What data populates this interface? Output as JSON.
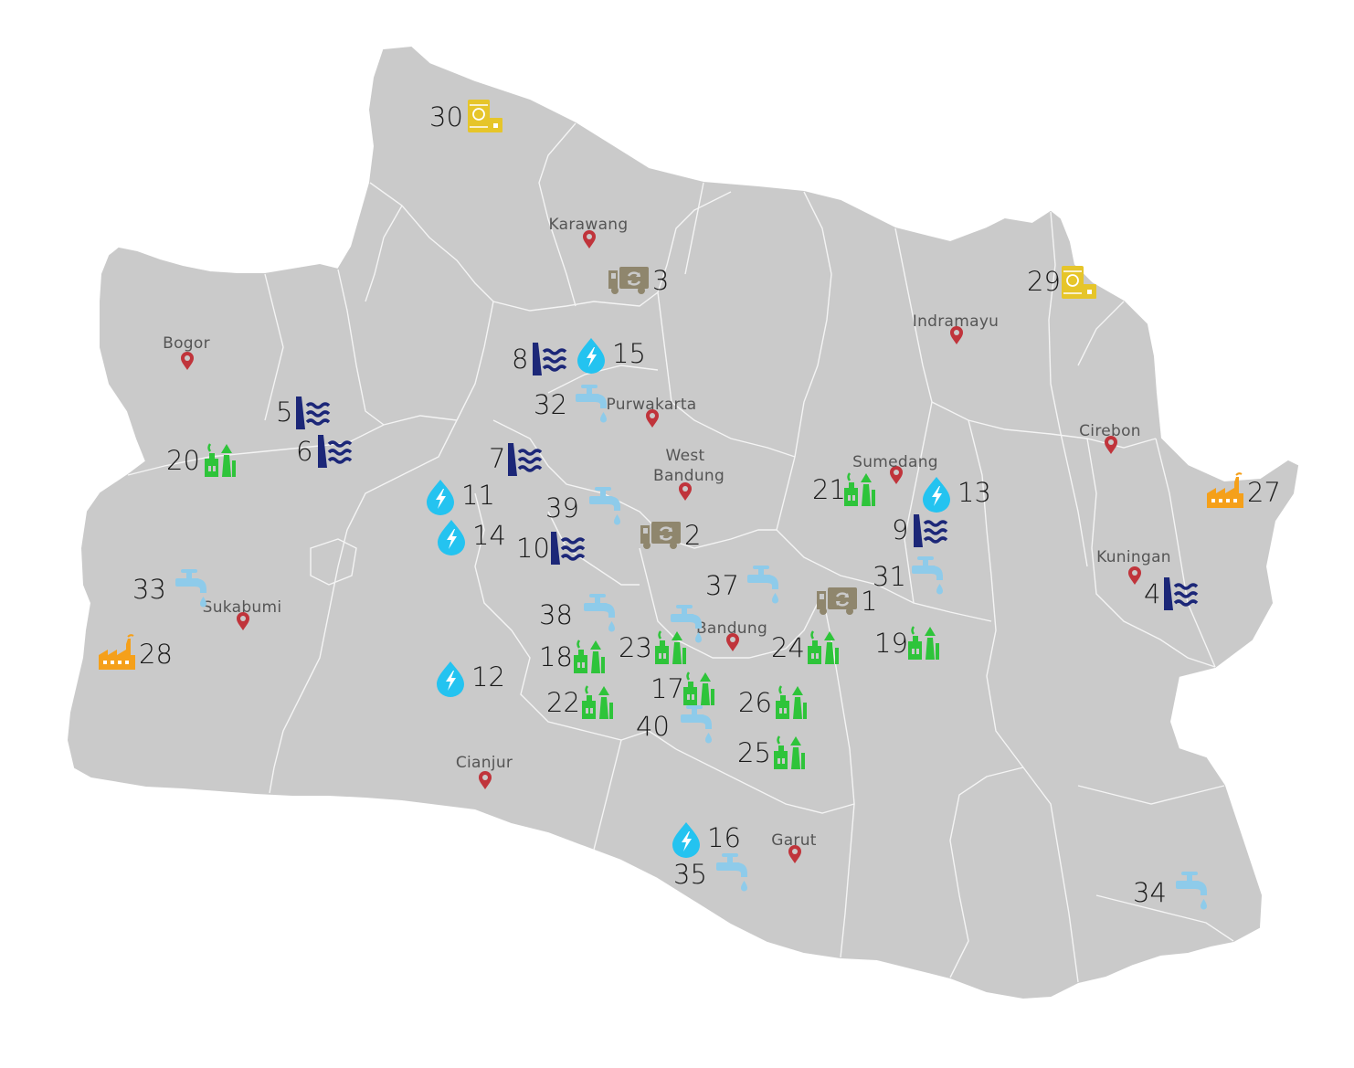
{
  "colors": {
    "land": "#cacaca",
    "border": "#f4f4f4",
    "pin": "#c0343b",
    "dam": "#1c2778",
    "hydro": "#24c3f0",
    "tap": "#8ecbea",
    "geo": "#2ec43a",
    "waste": "#8f866d",
    "factory": "#f5a01a",
    "oil": "#e6c52a"
  },
  "cities": [
    {
      "label": "Karawang"
    },
    {
      "label": "Bogor"
    },
    {
      "label": "Indramayu"
    },
    {
      "label": "Purwakarta"
    },
    {
      "label": "Cirebon"
    },
    {
      "label": "Sumedang"
    },
    {
      "label": "West Bandung"
    },
    {
      "label": "Kuningan"
    },
    {
      "label": "Sukabumi"
    },
    {
      "label": "Bandung"
    },
    {
      "label": "Cianjur"
    },
    {
      "label": "Garut"
    }
  ],
  "markers": [
    {
      "label": "1",
      "icon": "waste-truck-icon"
    },
    {
      "label": "2",
      "icon": "waste-truck-icon"
    },
    {
      "label": "3",
      "icon": "waste-truck-icon"
    },
    {
      "label": "4",
      "icon": "dam-icon"
    },
    {
      "label": "5",
      "icon": "dam-icon"
    },
    {
      "label": "6",
      "icon": "dam-icon"
    },
    {
      "label": "7",
      "icon": "dam-icon"
    },
    {
      "label": "8",
      "icon": "dam-icon"
    },
    {
      "label": "9",
      "icon": "dam-icon"
    },
    {
      "label": "10",
      "icon": "dam-icon"
    },
    {
      "label": "11",
      "icon": "hydro-drop-icon"
    },
    {
      "label": "12",
      "icon": "hydro-drop-icon"
    },
    {
      "label": "13",
      "icon": "hydro-drop-icon"
    },
    {
      "label": "14",
      "icon": "hydro-drop-icon"
    },
    {
      "label": "15",
      "icon": "hydro-drop-icon"
    },
    {
      "label": "16",
      "icon": "hydro-drop-icon"
    },
    {
      "label": "17",
      "icon": "geothermal-plant-icon"
    },
    {
      "label": "18",
      "icon": "geothermal-plant-icon"
    },
    {
      "label": "19",
      "icon": "geothermal-plant-icon"
    },
    {
      "label": "20",
      "icon": "geothermal-plant-icon"
    },
    {
      "label": "21",
      "icon": "geothermal-plant-icon"
    },
    {
      "label": "22",
      "icon": "geothermal-plant-icon"
    },
    {
      "label": "23",
      "icon": "geothermal-plant-icon"
    },
    {
      "label": "24",
      "icon": "geothermal-plant-icon"
    },
    {
      "label": "25",
      "icon": "geothermal-plant-icon"
    },
    {
      "label": "26",
      "icon": "geothermal-plant-icon"
    },
    {
      "label": "27",
      "icon": "factory-icon"
    },
    {
      "label": "28",
      "icon": "factory-icon"
    },
    {
      "label": "29",
      "icon": "oil-storage-icon"
    },
    {
      "label": "30",
      "icon": "oil-storage-icon"
    },
    {
      "label": "31",
      "icon": "water-tap-icon"
    },
    {
      "label": "32",
      "icon": "water-tap-icon"
    },
    {
      "label": "33",
      "icon": "water-tap-icon"
    },
    {
      "label": "34",
      "icon": "water-tap-icon"
    },
    {
      "label": "35",
      "icon": "water-tap-icon"
    },
    {
      "label": "37",
      "icon": "water-tap-icon"
    },
    {
      "label": "38",
      "icon": "water-tap-icon"
    },
    {
      "label": "39",
      "icon": "water-tap-icon"
    },
    {
      "label": "40",
      "icon": "water-tap-icon"
    }
  ]
}
